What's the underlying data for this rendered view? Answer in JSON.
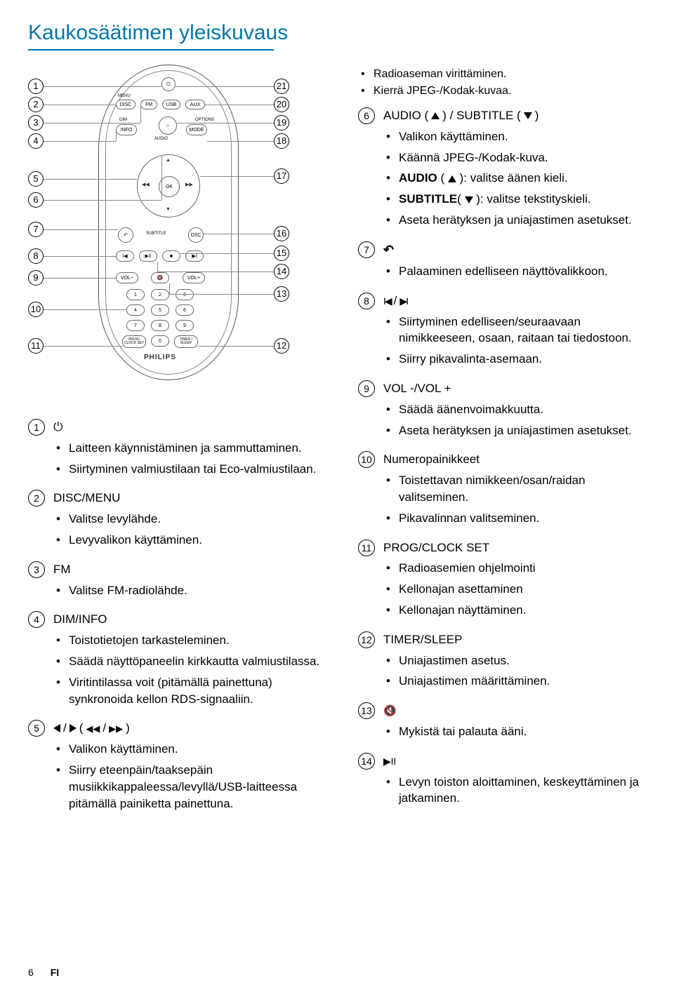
{
  "title": "Kaukosäätimen yleiskuvaus",
  "colors": {
    "accent": "#0077aa",
    "text": "#000000",
    "bg": "#ffffff",
    "outline": "#555555"
  },
  "remote": {
    "brand": "PHILIPS",
    "labels": {
      "menu": "MENU",
      "disc": "DISC",
      "fm": "FM",
      "usb": "USB",
      "aux": "AUX",
      "dim": "DIM",
      "audio": "AUDIO",
      "options": "OPTIONS",
      "info": "INFO",
      "mode": "MODE",
      "ok": "OK",
      "subtitle": "SUBTITLE",
      "dsc": "DSC",
      "volminus": "VOL−",
      "volplus": "VOL+",
      "prog": "PROG/\nCLOCK SET",
      "timer": "TIMER /\nSLEEP"
    },
    "leftNums": [
      "1",
      "2",
      "3",
      "4",
      "5",
      "6",
      "7",
      "8",
      "9",
      "10",
      "11"
    ],
    "rightNums": [
      "21",
      "20",
      "19",
      "18",
      "17",
      "16",
      "15",
      "14",
      "13",
      "12"
    ]
  },
  "leftDefs": [
    {
      "num": "1",
      "heading_icon": "power",
      "bullets": [
        "Laitteen käynnistäminen ja sammuttaminen.",
        "Siirtyminen valmiustilaan tai Eco-valmiustilaan."
      ]
    },
    {
      "num": "2",
      "heading": "DISC/MENU",
      "bullets": [
        "Valitse levylähde.",
        "Levyvalikon käyttäminen."
      ]
    },
    {
      "num": "3",
      "heading": "FM",
      "bullets": [
        "Valitse FM-radiolähde."
      ]
    },
    {
      "num": "4",
      "heading": "DIM/INFO",
      "bullets": [
        "Toistotietojen tarkasteleminen.",
        "Säädä näyttöpaneelin kirkkautta valmiustilassa.",
        "Viritintilassa voit (pitämällä painettuna) synkronoida kellon RDS-signaaliin."
      ]
    },
    {
      "num": "5",
      "heading_icon": "nav5",
      "bullets": [
        "Valikon käyttäminen.",
        "Siirry eteenpäin/taaksepäin musiikkikappaleessa/levyllä/USB-laitteessa pitämällä painiketta painettuna."
      ]
    }
  ],
  "rightBullets": [
    "Radioaseman virittäminen.",
    "Kierrä JPEG-/Kodak-kuvaa."
  ],
  "rightDefs": [
    {
      "num": "6",
      "heading": "AUDIO ( ▲ ) / SUBTITLE ( ▼ )",
      "bullets": [
        "Valikon käyttäminen.",
        "Käännä JPEG-/Kodak-kuva.",
        "|b|AUDIO|/b| ( ▲ ): valitse äänen kieli.",
        "|b|SUBTITLE|/b|( ▼ ): valitse tekstityskieli.",
        "Aseta herätyksen ja uniajastimen asetukset."
      ]
    },
    {
      "num": "7",
      "heading_icon": "return",
      "bullets": [
        "Palaaminen edelliseen näyttövalikkoon."
      ]
    },
    {
      "num": "8",
      "heading_icon": "skip",
      "bullets": [
        "Siirtyminen edelliseen/seuraavaan nimikkeeseen, osaan, raitaan tai tiedostoon.",
        "Siirry pikavalinta-asemaan."
      ]
    },
    {
      "num": "9",
      "heading": "VOL -/VOL +",
      "bullets": [
        "Säädä äänenvoimakkuutta.",
        "Aseta herätyksen ja uniajastimen asetukset."
      ]
    },
    {
      "num": "10",
      "heading": "Numeropainikkeet",
      "bullets": [
        "Toistettavan nimikkeen/osan/raidan valitseminen.",
        "Pikavalinnan valitseminen."
      ]
    },
    {
      "num": "11",
      "heading": "PROG/CLOCK SET",
      "bullets": [
        "Radioasemien ohjelmointi",
        "Kellonajan asettaminen",
        "Kellonajan näyttäminen."
      ]
    },
    {
      "num": "12",
      "heading": "TIMER/SLEEP",
      "bullets": [
        "Uniajastimen asetus.",
        "Uniajastimen määrittäminen."
      ]
    },
    {
      "num": "13",
      "heading_icon": "mute",
      "bullets": [
        "Mykistä tai palauta ääni."
      ]
    },
    {
      "num": "14",
      "heading_icon": "playpause",
      "bullets": [
        "Levyn toiston aloittaminen, keskeyttäminen ja jatkaminen."
      ]
    }
  ],
  "footer": {
    "page": "6",
    "lang": "FI"
  }
}
